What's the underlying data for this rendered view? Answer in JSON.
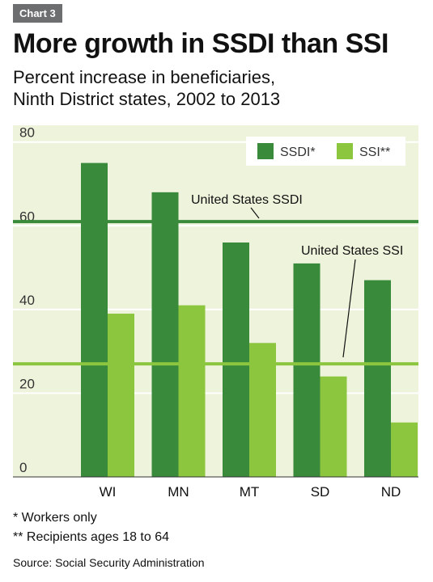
{
  "header": {
    "tag": "Chart 3",
    "title": "More growth in SSDI than SSI",
    "subtitle_line1": "Percent increase in beneficiaries,",
    "subtitle_line2": "Ninth District states, 2002 to 2013"
  },
  "chart_data": {
    "type": "bar",
    "categories": [
      "WI",
      "MN",
      "MT",
      "SD",
      "ND"
    ],
    "series": [
      {
        "name": "SSDI*",
        "color": "#3a8a3c",
        "values": [
          75,
          68,
          56,
          51,
          47
        ]
      },
      {
        "name": "SSI**",
        "color": "#8cc63f",
        "values": [
          39,
          41,
          32,
          24,
          13
        ]
      }
    ],
    "reference_lines": [
      {
        "label": "United States SSDI",
        "value": 61,
        "color": "#3a8a3c"
      },
      {
        "label": "United States SSI",
        "value": 27,
        "color": "#8cc63f"
      }
    ],
    "y_ticks": [
      "0",
      "20",
      "40",
      "60",
      "80"
    ],
    "ylim": [
      0,
      84
    ],
    "grid": true,
    "legend_position": "top-right",
    "plot_background": "#eef3dc"
  },
  "footnotes": {
    "note1": "* Workers only",
    "note2": "** Recipients ages 18 to 64",
    "source": "Source: Social Security Administration"
  }
}
